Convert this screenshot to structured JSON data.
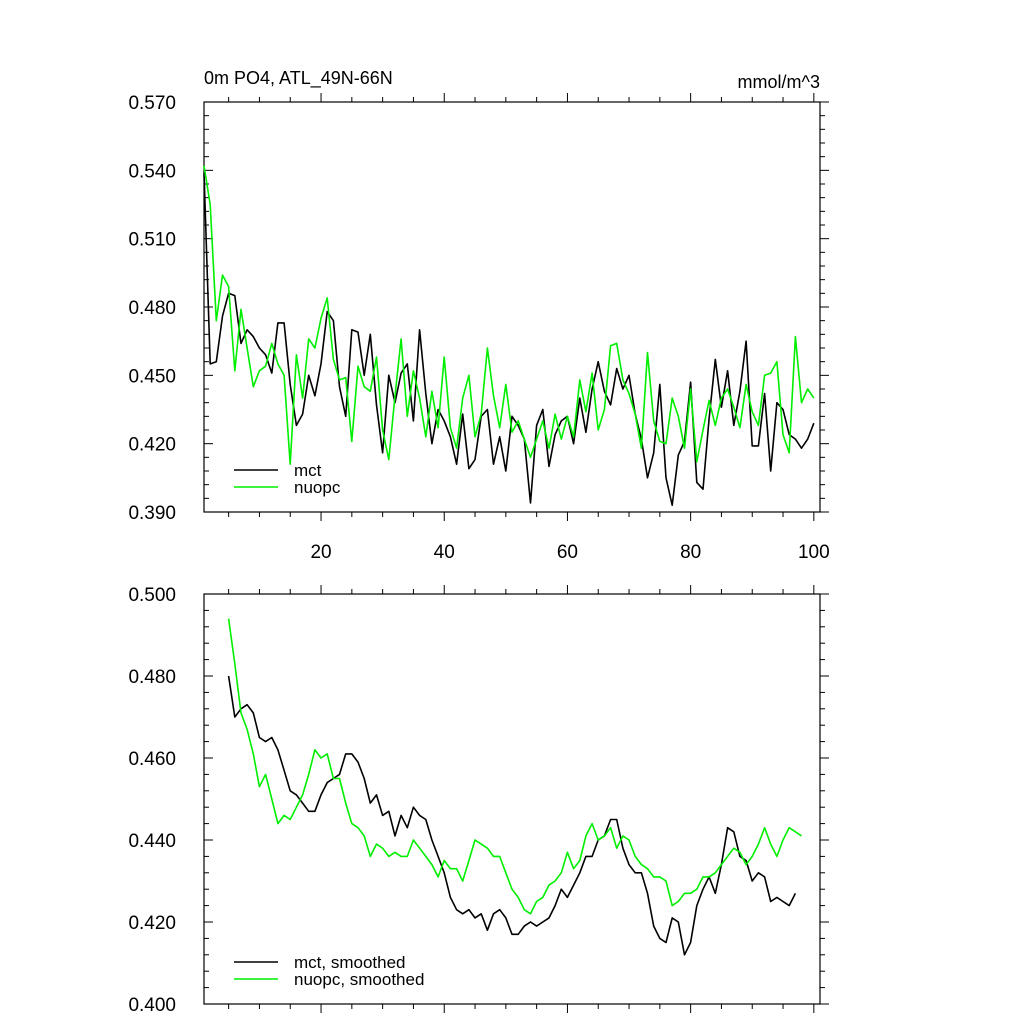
{
  "chart_data": [
    {
      "type": "line",
      "title": "0m PO4, ATL_49N-66N",
      "units": "mmol/m^3",
      "xlabel": "",
      "ylabel": "",
      "xlim": [
        1,
        101
      ],
      "ylim": [
        0.39,
        0.57
      ],
      "x_ticks": [
        20,
        40,
        60,
        80,
        100
      ],
      "x_tick_labels": [
        "20",
        "40",
        "60",
        "80",
        "100"
      ],
      "y_ticks": [
        0.39,
        0.42,
        0.45,
        0.48,
        0.51,
        0.54,
        0.57
      ],
      "y_tick_labels": [
        "0.390",
        "0.420",
        "0.450",
        "0.480",
        "0.510",
        "0.540",
        "0.570"
      ],
      "legend_position": "bottom-left",
      "x_start": 1,
      "series": [
        {
          "name": "mct",
          "color": "#000000",
          "values": [
            0.539,
            0.455,
            0.456,
            0.476,
            0.486,
            0.485,
            0.464,
            0.47,
            0.467,
            0.462,
            0.459,
            0.451,
            0.473,
            0.473,
            0.446,
            0.428,
            0.433,
            0.45,
            0.441,
            0.455,
            0.478,
            0.474,
            0.445,
            0.432,
            0.47,
            0.469,
            0.45,
            0.468,
            0.437,
            0.416,
            0.45,
            0.438,
            0.451,
            0.455,
            0.43,
            0.47,
            0.442,
            0.42,
            0.435,
            0.43,
            0.423,
            0.411,
            0.433,
            0.409,
            0.413,
            0.432,
            0.435,
            0.411,
            0.423,
            0.408,
            0.432,
            0.428,
            0.422,
            0.394,
            0.428,
            0.435,
            0.41,
            0.424,
            0.43,
            0.432,
            0.42,
            0.44,
            0.425,
            0.444,
            0.456,
            0.443,
            0.437,
            0.453,
            0.444,
            0.45,
            0.433,
            0.422,
            0.405,
            0.416,
            0.446,
            0.405,
            0.393,
            0.415,
            0.421,
            0.447,
            0.403,
            0.4,
            0.431,
            0.457,
            0.436,
            0.452,
            0.428,
            0.443,
            0.465,
            0.419,
            0.419,
            0.442,
            0.408,
            0.438,
            0.435,
            0.424,
            0.422,
            0.418,
            0.422,
            0.429
          ]
        },
        {
          "name": "nuopc",
          "color": "#00ee00",
          "values": [
            0.542,
            0.525,
            0.474,
            0.494,
            0.489,
            0.452,
            0.479,
            0.462,
            0.445,
            0.452,
            0.454,
            0.464,
            0.455,
            0.45,
            0.411,
            0.459,
            0.44,
            0.466,
            0.462,
            0.475,
            0.484,
            0.457,
            0.448,
            0.449,
            0.421,
            0.454,
            0.445,
            0.443,
            0.458,
            0.426,
            0.413,
            0.441,
            0.466,
            0.432,
            0.452,
            0.44,
            0.423,
            0.443,
            0.427,
            0.458,
            0.427,
            0.418,
            0.44,
            0.45,
            0.423,
            0.433,
            0.462,
            0.441,
            0.427,
            0.446,
            0.425,
            0.43,
            0.422,
            0.414,
            0.422,
            0.43,
            0.418,
            0.433,
            0.422,
            0.432,
            0.423,
            0.448,
            0.434,
            0.451,
            0.426,
            0.435,
            0.463,
            0.464,
            0.448,
            0.442,
            0.433,
            0.418,
            0.46,
            0.43,
            0.421,
            0.42,
            0.44,
            0.432,
            0.418,
            0.444,
            0.412,
            0.426,
            0.439,
            0.428,
            0.44,
            0.444,
            0.436,
            0.427,
            0.446,
            0.434,
            0.428,
            0.45,
            0.451,
            0.456,
            0.424,
            0.416,
            0.467,
            0.438,
            0.444,
            0.44
          ]
        }
      ]
    },
    {
      "type": "line",
      "title": "",
      "xlabel": "",
      "ylabel": "",
      "xlim": [
        1,
        101
      ],
      "ylim": [
        0.4,
        0.5
      ],
      "x_ticks": [
        20,
        40,
        60,
        80,
        100
      ],
      "x_tick_labels": [],
      "y_ticks": [
        0.4,
        0.42,
        0.44,
        0.46,
        0.48,
        0.5
      ],
      "y_tick_labels": [
        "0.400",
        "0.420",
        "0.440",
        "0.460",
        "0.480",
        "0.500"
      ],
      "legend_position": "bottom-left",
      "x_start": 5,
      "series": [
        {
          "name": "mct, smoothed",
          "color": "#000000",
          "values": [
            0.48,
            0.47,
            0.472,
            0.473,
            0.471,
            0.465,
            0.464,
            0.465,
            0.462,
            0.457,
            0.452,
            0.451,
            0.449,
            0.447,
            0.447,
            0.451,
            0.454,
            0.455,
            0.456,
            0.461,
            0.461,
            0.459,
            0.455,
            0.449,
            0.451,
            0.446,
            0.447,
            0.441,
            0.446,
            0.443,
            0.448,
            0.446,
            0.445,
            0.44,
            0.436,
            0.432,
            0.426,
            0.423,
            0.422,
            0.423,
            0.421,
            0.422,
            0.418,
            0.422,
            0.423,
            0.421,
            0.417,
            0.417,
            0.419,
            0.42,
            0.419,
            0.42,
            0.421,
            0.424,
            0.428,
            0.426,
            0.429,
            0.432,
            0.436,
            0.436,
            0.44,
            0.441,
            0.445,
            0.445,
            0.438,
            0.434,
            0.432,
            0.432,
            0.427,
            0.419,
            0.416,
            0.415,
            0.421,
            0.42,
            0.412,
            0.415,
            0.424,
            0.428,
            0.431,
            0.427,
            0.434,
            0.443,
            0.442,
            0.436,
            0.435,
            0.43,
            0.432,
            0.431,
            0.425,
            0.426,
            0.425,
            0.424,
            0.427
          ]
        },
        {
          "name": "nuopc, smoothed",
          "color": "#00ee00",
          "values": [
            0.494,
            0.483,
            0.471,
            0.467,
            0.461,
            0.453,
            0.456,
            0.45,
            0.444,
            0.446,
            0.445,
            0.448,
            0.451,
            0.456,
            0.462,
            0.46,
            0.461,
            0.455,
            0.455,
            0.449,
            0.444,
            0.443,
            0.441,
            0.436,
            0.439,
            0.438,
            0.436,
            0.437,
            0.436,
            0.436,
            0.44,
            0.438,
            0.436,
            0.434,
            0.431,
            0.435,
            0.433,
            0.433,
            0.43,
            0.435,
            0.44,
            0.439,
            0.438,
            0.436,
            0.436,
            0.432,
            0.428,
            0.426,
            0.423,
            0.422,
            0.425,
            0.426,
            0.429,
            0.43,
            0.432,
            0.437,
            0.433,
            0.435,
            0.441,
            0.444,
            0.44,
            0.441,
            0.443,
            0.438,
            0.441,
            0.44,
            0.436,
            0.434,
            0.433,
            0.431,
            0.431,
            0.43,
            0.424,
            0.425,
            0.427,
            0.427,
            0.428,
            0.431,
            0.431,
            0.432,
            0.434,
            0.436,
            0.438,
            0.437,
            0.434,
            0.436,
            0.439,
            0.443,
            0.439,
            0.436,
            0.44,
            0.443,
            0.442,
            0.441
          ]
        }
      ]
    }
  ]
}
